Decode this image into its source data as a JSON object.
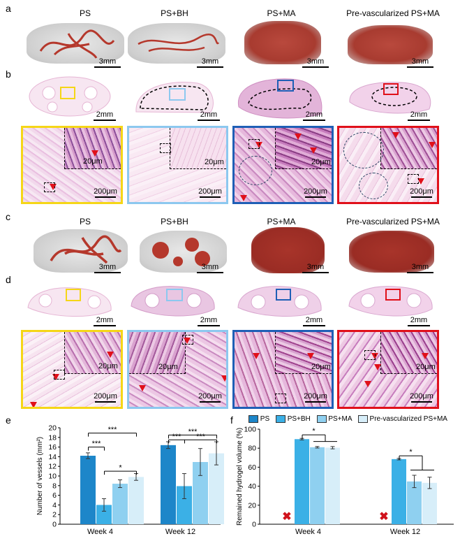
{
  "panels": {
    "a": "a",
    "b": "b",
    "c": "c",
    "d": "d",
    "e": "e",
    "f": "f"
  },
  "groups": [
    "PS",
    "PS+BH",
    "PS+MA",
    "Pre-vascularized PS+MA"
  ],
  "scale_3d": "3mm",
  "scale_section": "2mm",
  "scale_zoom": "200μm",
  "scale_inset": "20μm",
  "colors": {
    "yellow": "#f5d617",
    "light_blue": "#8cc8ef",
    "blue": "#1f5fb6",
    "red": "#e0101a",
    "bar1": "#1d86c9",
    "bar2": "#3bb0e6",
    "bar3": "#8fd0f0",
    "bar4": "#d7eef9"
  },
  "chart_data": [
    {
      "type": "bar",
      "categories": [
        "Week 4",
        "Week 12"
      ],
      "ylabel": "Number of vessels (mm²)",
      "ylim": [
        0,
        20
      ],
      "yticks": [
        0,
        2,
        4,
        6,
        8,
        10,
        12,
        14,
        16,
        18,
        20
      ],
      "series": [
        {
          "name": "PS",
          "values": [
            14.2,
            16.4
          ],
          "err": [
            0.6,
            0.7
          ]
        },
        {
          "name": "PS+BH",
          "values": [
            4.0,
            7.9
          ],
          "err": [
            1.3,
            2.6
          ]
        },
        {
          "name": "PS+MA",
          "values": [
            8.4,
            12.9
          ],
          "err": [
            0.8,
            2.8
          ]
        },
        {
          "name": "Pre-vascularized PS+MA",
          "values": [
            9.8,
            14.7
          ],
          "err": [
            0.7,
            2.4
          ]
        }
      ],
      "significance": [
        "***",
        "***",
        "*",
        "***",
        "***",
        "***"
      ]
    },
    {
      "type": "bar",
      "categories": [
        "Week 4",
        "Week 12"
      ],
      "ylabel": "Remained hydrogel volume (%)",
      "ylim": [
        0,
        100
      ],
      "yticks": [
        0,
        20,
        40,
        60,
        80,
        100
      ],
      "series": [
        {
          "name": "PS",
          "values": [
            null,
            null
          ],
          "err": [
            null,
            null
          ]
        },
        {
          "name": "PS+BH",
          "values": [
            89.5,
            68.5
          ],
          "err": [
            0.8,
            0.8
          ]
        },
        {
          "name": "PS+MA",
          "values": [
            81.0,
            45.0
          ],
          "err": [
            0.8,
            6.5
          ]
        },
        {
          "name": "Pre-vascularized PS+MA",
          "values": [
            80.5,
            43.5
          ],
          "err": [
            1.2,
            6.0
          ]
        }
      ],
      "significance": [
        "*",
        "*"
      ],
      "missing_marker": "✖"
    }
  ]
}
